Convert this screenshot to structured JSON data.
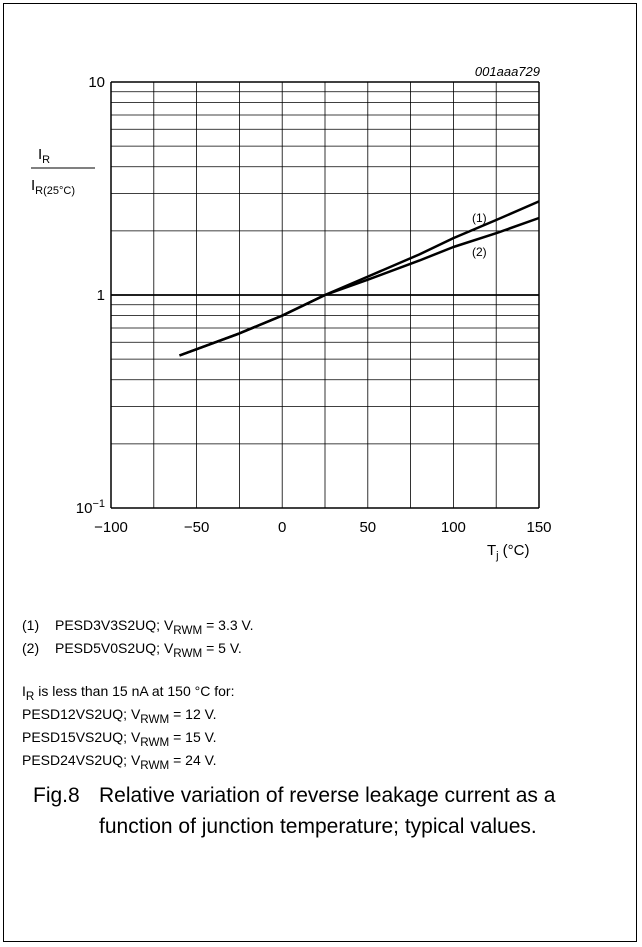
{
  "chart_data": {
    "type": "line",
    "figure_id": "001aaa729",
    "ylabel_num": "I",
    "ylabel_num_sub": "R",
    "ylabel_den": "I",
    "ylabel_den_sub": "R(25°C)",
    "xlabel_main": "T",
    "xlabel_sub": "j",
    "xlabel_unit": "(°C)",
    "y_scale": "log",
    "xlim": [
      -100,
      150
    ],
    "ylim": [
      0.1,
      10
    ],
    "x_ticks": [
      -100,
      -50,
      0,
      50,
      100,
      150
    ],
    "x_tick_labels": [
      "−100",
      "−50",
      "0",
      "50",
      "100",
      "150"
    ],
    "y_ticks": [
      {
        "value": 10,
        "base": "10",
        "exp": ""
      },
      {
        "value": 1,
        "base": "1",
        "exp": ""
      },
      {
        "value": 0.1,
        "base": "10",
        "exp": "−1"
      }
    ],
    "grid": true,
    "series": [
      {
        "name": "(1)",
        "color": "#000000",
        "x": [
          -60,
          -25,
          0,
          25,
          50,
          80,
          100,
          125,
          150
        ],
        "y": [
          0.52,
          0.66,
          0.8,
          1.0,
          1.22,
          1.55,
          1.85,
          2.25,
          2.75
        ]
      },
      {
        "name": "(2)",
        "color": "#000000",
        "x": [
          -60,
          -25,
          0,
          25,
          50,
          80,
          100,
          125,
          150
        ],
        "y": [
          0.52,
          0.66,
          0.8,
          1.0,
          1.18,
          1.45,
          1.68,
          1.95,
          2.3
        ]
      }
    ]
  },
  "legend_notes": [
    {
      "num": "(1)",
      "device": "PESD3V3S2UQ; V",
      "sub": "RWM",
      "rest": " = 3.3 V."
    },
    {
      "num": "(2)",
      "device": "PESD5V0S2UQ; V",
      "sub": "RWM",
      "rest": " = 5 V."
    }
  ],
  "leakage": {
    "line": {
      "pre": "I",
      "sub": "R",
      "post": " is less than 15 nA at 150 °C for:"
    },
    "devices": [
      {
        "device": "PESD12VS2UQ; V",
        "sub": "RWM",
        "rest": " = 12 V."
      },
      {
        "device": "PESD15VS2UQ; V",
        "sub": "RWM",
        "rest": " = 15 V."
      },
      {
        "device": "PESD24VS2UQ; V",
        "sub": "RWM",
        "rest": " = 24 V."
      }
    ]
  },
  "caption": {
    "number": "Fig.8",
    "text": "Relative variation of reverse leakage current as a function of junction temperature; typical values."
  }
}
